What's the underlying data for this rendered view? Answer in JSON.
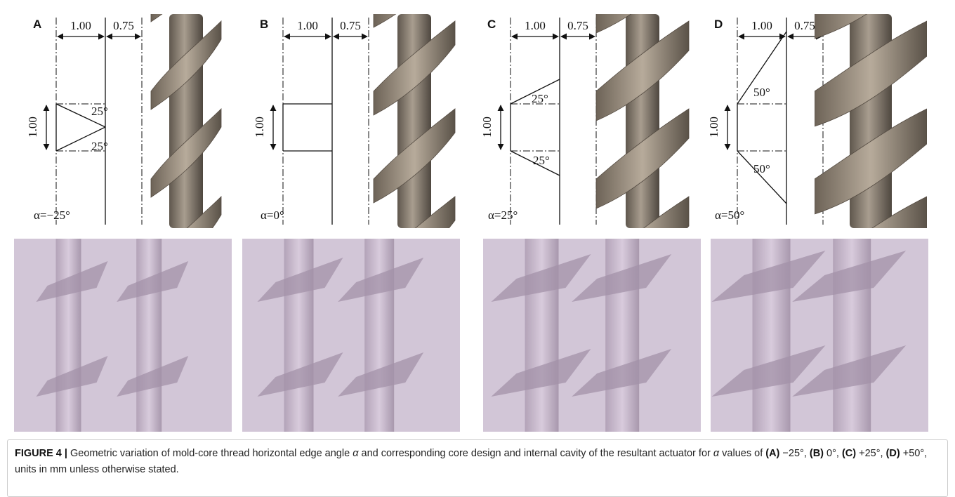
{
  "panels": [
    {
      "label": "A",
      "width_label": "1.00",
      "gap_label": "0.75",
      "height_label": "1.00",
      "angle_labels": [
        "25°",
        "25°"
      ],
      "alpha": "α=−25°"
    },
    {
      "label": "B",
      "width_label": "1.00",
      "gap_label": "0.75",
      "height_label": "1.00",
      "angle_labels": [],
      "alpha": "α=0°"
    },
    {
      "label": "C",
      "width_label": "1.00",
      "gap_label": "0.75",
      "height_label": "1.00",
      "angle_labels": [
        "25°",
        "25°"
      ],
      "alpha": "α=25°"
    },
    {
      "label": "D",
      "width_label": "1.00",
      "gap_label": "0.75",
      "height_label": "1.00",
      "angle_labels": [
        "50°",
        "50°"
      ],
      "alpha": "α=50°"
    }
  ],
  "caption": {
    "lead": "FIGURE 4 |",
    "body1": " Geometric variation of mold-core thread horizontal edge angle ",
    "symbol1": "α",
    "body2": " and corresponding core design and internal cavity of the resultant actuator for ",
    "symbol2": "α",
    "body3": " values of ",
    "items": [
      {
        "label": "(A)",
        "text": " −25°, "
      },
      {
        "label": "(B)",
        "text": " 0°, "
      },
      {
        "label": "(C)",
        "text": " +25°, "
      },
      {
        "label": "(D)",
        "text": " +50°,"
      }
    ],
    "tail": " units in mm unless otherwise stated."
  }
}
